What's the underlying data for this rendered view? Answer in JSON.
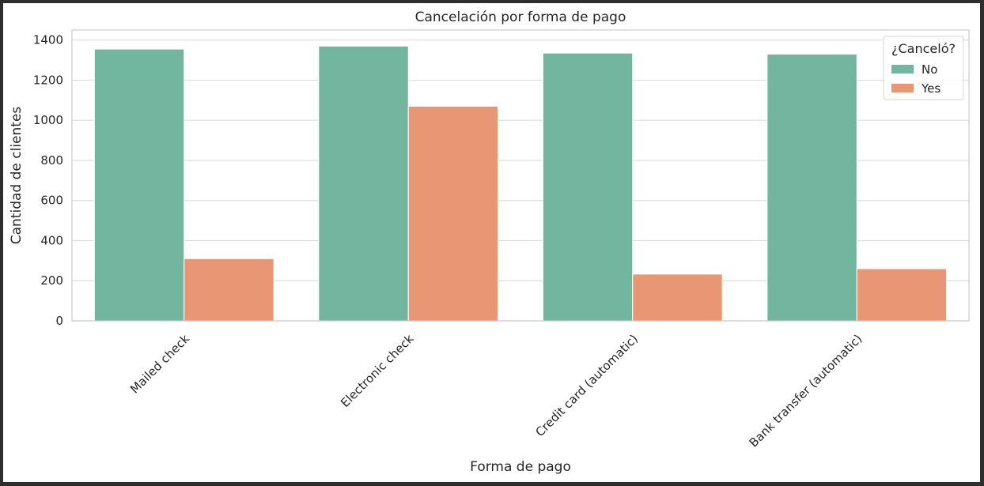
{
  "chart_data": {
    "type": "bar",
    "title": "Cancelación por forma de pago",
    "xlabel": "Forma de pago",
    "ylabel": "Cantidad de clientes",
    "categories": [
      "Mailed check",
      "Electronic check",
      "Credit card (automatic)",
      "Bank transfer (automatic)"
    ],
    "series": [
      {
        "name": "No",
        "values": [
          1355,
          1370,
          1335,
          1330
        ],
        "color": "#73b6a0"
      },
      {
        "name": "Yes",
        "values": [
          310,
          1070,
          233,
          260
        ],
        "color": "#e99674"
      }
    ],
    "ylim": [
      0,
      1450
    ],
    "yticks": [
      0,
      200,
      400,
      600,
      800,
      1000,
      1200,
      1400
    ],
    "grid": true,
    "legend": {
      "title": "¿Canceló?",
      "placement": "top-right"
    }
  }
}
